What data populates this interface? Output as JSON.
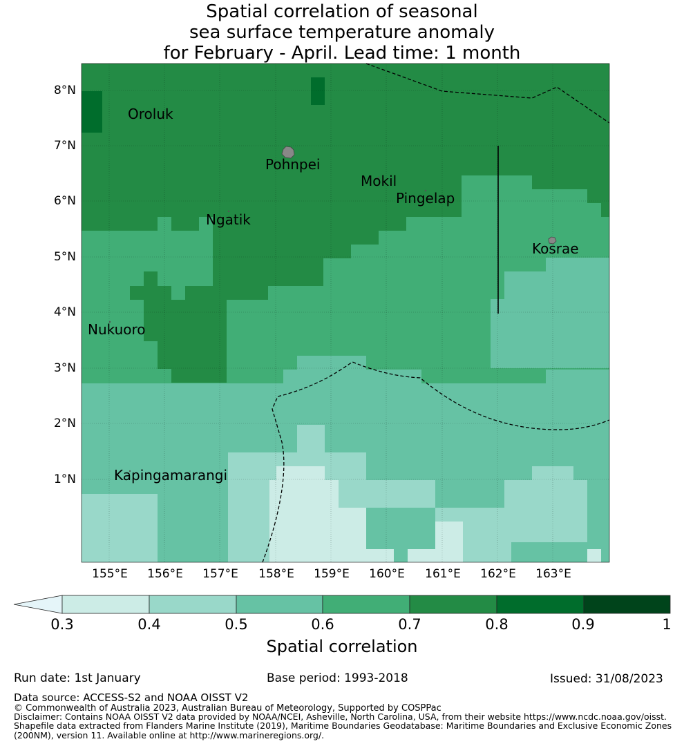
{
  "title_lines": [
    "Spatial correlation of seasonal",
    "sea surface temperature anomaly",
    "for February - April. Lead time: 1 month"
  ],
  "lat_ticks": [
    "8°N",
    "7°N",
    "6°N",
    "5°N",
    "4°N",
    "3°N",
    "2°N",
    "1°N"
  ],
  "lon_ticks": [
    "155°E",
    "156°E",
    "157°E",
    "158°E",
    "159°E",
    "160°E",
    "161°E",
    "162°E",
    "163°E"
  ],
  "places": [
    "Oroluk",
    "Pohnpei",
    "Mokil",
    "Pingelap",
    "Ngatik",
    "Kosrae",
    "Nukuoro",
    "Kapingamarangi"
  ],
  "colorbar": {
    "label": "Spatial correlation",
    "ticks": [
      "0.3",
      "0.4",
      "0.5",
      "0.6",
      "0.7",
      "0.8",
      "0.9",
      "1"
    ],
    "colors": [
      "#e5f5f9",
      "#ccece6",
      "#99d8c9",
      "#66c2a4",
      "#41ae76",
      "#238b45",
      "#006d2c",
      "#00441b"
    ]
  },
  "footer": {
    "run_date": "Run date: 1st January",
    "base_period": "Base period: 1993-2018",
    "issued": "Issued: 31/08/2023",
    "data_source": "Data source: ACCESS-S2 and NOAA OISST V2",
    "copyright": "© Commonwealth of Australia 2023, Australian Bureau of Meteorology, Supported by COSPPac",
    "disclaimer_lines": [
      "Disclaimer: Contains NOAA OISST V2 data provided by NOAA/NCEI, Asheville, North Carolina, USA, from their website https://www.ncdc.noaa.gov/oisst.",
      "Shapefile data extracted from Flanders Marine Institute (2019), Maritime Boundaries Geodatabase: Maritime Boundaries and Exclusive Economic Zones",
      "(200NM), version 11. Available online at http://www.marineregions.org/."
    ]
  }
}
